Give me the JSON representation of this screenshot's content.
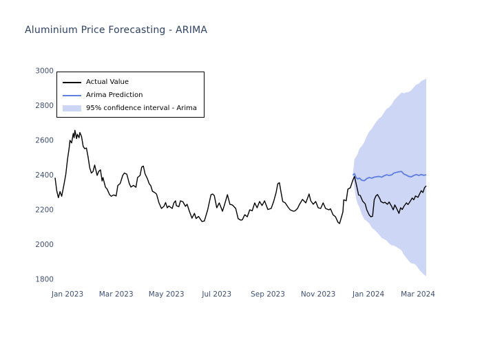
{
  "title": "Aluminium Price Forecasting - ARIMA",
  "colors": {
    "background": "#ffffff",
    "title_text": "#2e4160",
    "tick_text": "#3e4f72",
    "actual_line": "#000000",
    "prediction_line": "#6080e0",
    "confidence_band": "#cdd6f5",
    "legend_border": "#000000",
    "legend_text": "#000000"
  },
  "legend": {
    "position": "upper left",
    "items": [
      {
        "label": "Actual Value",
        "swatch": "line",
        "color": "#000000"
      },
      {
        "label": "Arima Prediction",
        "swatch": "line",
        "color": "#6080e0"
      },
      {
        "label": "95% confidence interval - Arima",
        "swatch": "patch",
        "color": "#cdd6f5"
      }
    ]
  },
  "chart_data": {
    "type": "line",
    "title": "Aluminium Price Forecasting - ARIMA",
    "xlabel": "",
    "ylabel": "",
    "grid": false,
    "frame": false,
    "legend_position": "upper left",
    "ylim": [
      1800,
      3000
    ],
    "y_ticks": [
      1800,
      2000,
      2200,
      2400,
      2600,
      2800,
      3000
    ],
    "x_ticks": [
      {
        "label": "Jan 2023",
        "date": "2023-01-01"
      },
      {
        "label": "Mar 2023",
        "date": "2023-03-01"
      },
      {
        "label": "May 2023",
        "date": "2023-05-01"
      },
      {
        "label": "Jul 2023",
        "date": "2023-07-01"
      },
      {
        "label": "Sep 2023",
        "date": "2023-09-01"
      },
      {
        "label": "Nov 2023",
        "date": "2023-11-01"
      },
      {
        "label": "Jan 2024",
        "date": "2024-01-01"
      },
      {
        "label": "Mar 2024",
        "date": "2024-03-01"
      }
    ],
    "series": [
      {
        "name": "Actual Value",
        "type": "line",
        "color": "#000000",
        "points": [
          [
            "2022-12-17",
            2385
          ],
          [
            "2022-12-19",
            2310
          ],
          [
            "2022-12-21",
            2270
          ],
          [
            "2022-12-23",
            2305
          ],
          [
            "2022-12-25",
            2278
          ],
          [
            "2022-12-28",
            2352
          ],
          [
            "2022-12-30",
            2405
          ],
          [
            "2023-01-01",
            2490
          ],
          [
            "2023-01-03",
            2555
          ],
          [
            "2023-01-04",
            2600
          ],
          [
            "2023-01-06",
            2585
          ],
          [
            "2023-01-08",
            2640
          ],
          [
            "2023-01-09",
            2615
          ],
          [
            "2023-01-10",
            2658
          ],
          [
            "2023-01-12",
            2610
          ],
          [
            "2023-01-13",
            2635
          ],
          [
            "2023-01-15",
            2615
          ],
          [
            "2023-01-16",
            2645
          ],
          [
            "2023-01-18",
            2622
          ],
          [
            "2023-01-20",
            2565
          ],
          [
            "2023-01-22",
            2552
          ],
          [
            "2023-01-24",
            2556
          ],
          [
            "2023-01-26",
            2505
          ],
          [
            "2023-01-28",
            2442
          ],
          [
            "2023-01-30",
            2412
          ],
          [
            "2023-02-01",
            2420
          ],
          [
            "2023-02-03",
            2458
          ],
          [
            "2023-02-06",
            2398
          ],
          [
            "2023-02-08",
            2422
          ],
          [
            "2023-02-10",
            2430
          ],
          [
            "2023-02-12",
            2366
          ],
          [
            "2023-02-13",
            2386
          ],
          [
            "2023-02-16",
            2331
          ],
          [
            "2023-02-18",
            2320
          ],
          [
            "2023-02-21",
            2288
          ],
          [
            "2023-02-23",
            2278
          ],
          [
            "2023-02-26",
            2286
          ],
          [
            "2023-03-01",
            2280
          ],
          [
            "2023-03-03",
            2340
          ],
          [
            "2023-03-06",
            2352
          ],
          [
            "2023-03-09",
            2398
          ],
          [
            "2023-03-11",
            2412
          ],
          [
            "2023-03-14",
            2405
          ],
          [
            "2023-03-17",
            2351
          ],
          [
            "2023-03-19",
            2331
          ],
          [
            "2023-03-22",
            2341
          ],
          [
            "2023-03-25",
            2330
          ],
          [
            "2023-03-27",
            2386
          ],
          [
            "2023-03-30",
            2398
          ],
          [
            "2023-04-01",
            2446
          ],
          [
            "2023-04-03",
            2452
          ],
          [
            "2023-04-05",
            2408
          ],
          [
            "2023-04-08",
            2378
          ],
          [
            "2023-04-10",
            2351
          ],
          [
            "2023-04-12",
            2339
          ],
          [
            "2023-04-14",
            2307
          ],
          [
            "2023-04-17",
            2299
          ],
          [
            "2023-04-19",
            2291
          ],
          [
            "2023-04-22",
            2240
          ],
          [
            "2023-04-25",
            2208
          ],
          [
            "2023-04-28",
            2220
          ],
          [
            "2023-04-30",
            2242
          ],
          [
            "2023-05-02",
            2212
          ],
          [
            "2023-05-04",
            2222
          ],
          [
            "2023-05-08",
            2208
          ],
          [
            "2023-05-10",
            2240
          ],
          [
            "2023-05-12",
            2252
          ],
          [
            "2023-05-13",
            2224
          ],
          [
            "2023-05-16",
            2218
          ],
          [
            "2023-05-18",
            2252
          ],
          [
            "2023-05-21",
            2246
          ],
          [
            "2023-05-24",
            2220
          ],
          [
            "2023-05-26",
            2232
          ],
          [
            "2023-05-29",
            2190
          ],
          [
            "2023-06-01",
            2152
          ],
          [
            "2023-06-04",
            2180
          ],
          [
            "2023-06-06",
            2150
          ],
          [
            "2023-06-09",
            2162
          ],
          [
            "2023-06-13",
            2133
          ],
          [
            "2023-06-16",
            2136
          ],
          [
            "2023-06-20",
            2200
          ],
          [
            "2023-06-24",
            2287
          ],
          [
            "2023-06-26",
            2291
          ],
          [
            "2023-06-28",
            2282
          ],
          [
            "2023-07-01",
            2212
          ],
          [
            "2023-07-04",
            2240
          ],
          [
            "2023-07-08",
            2192
          ],
          [
            "2023-07-10",
            2222
          ],
          [
            "2023-07-14",
            2287
          ],
          [
            "2023-07-17",
            2232
          ],
          [
            "2023-07-20",
            2228
          ],
          [
            "2023-07-24",
            2208
          ],
          [
            "2023-07-27",
            2149
          ],
          [
            "2023-07-30",
            2141
          ],
          [
            "2023-08-01",
            2142
          ],
          [
            "2023-08-04",
            2172
          ],
          [
            "2023-08-07",
            2160
          ],
          [
            "2023-08-10",
            2200
          ],
          [
            "2023-08-13",
            2195
          ],
          [
            "2023-08-16",
            2240
          ],
          [
            "2023-08-19",
            2212
          ],
          [
            "2023-08-22",
            2248
          ],
          [
            "2023-08-25",
            2225
          ],
          [
            "2023-08-28",
            2252
          ],
          [
            "2023-09-01",
            2202
          ],
          [
            "2023-09-05",
            2208
          ],
          [
            "2023-09-08",
            2248
          ],
          [
            "2023-09-11",
            2300
          ],
          [
            "2023-09-13",
            2350
          ],
          [
            "2023-09-15",
            2356
          ],
          [
            "2023-09-17",
            2300
          ],
          [
            "2023-09-19",
            2248
          ],
          [
            "2023-09-22",
            2240
          ],
          [
            "2023-09-26",
            2212
          ],
          [
            "2023-09-28",
            2200
          ],
          [
            "2023-10-02",
            2192
          ],
          [
            "2023-10-04",
            2194
          ],
          [
            "2023-10-07",
            2208
          ],
          [
            "2023-10-09",
            2228
          ],
          [
            "2023-10-13",
            2260
          ],
          [
            "2023-10-17",
            2240
          ],
          [
            "2023-10-21",
            2291
          ],
          [
            "2023-10-23",
            2252
          ],
          [
            "2023-10-26",
            2232
          ],
          [
            "2023-10-29",
            2248
          ],
          [
            "2023-11-01",
            2212
          ],
          [
            "2023-11-04",
            2208
          ],
          [
            "2023-11-07",
            2240
          ],
          [
            "2023-11-10",
            2208
          ],
          [
            "2023-11-14",
            2200
          ],
          [
            "2023-11-16",
            2206
          ],
          [
            "2023-11-19",
            2172
          ],
          [
            "2023-11-22",
            2160
          ],
          [
            "2023-11-25",
            2129
          ],
          [
            "2023-11-27",
            2121
          ],
          [
            "2023-12-01",
            2188
          ],
          [
            "2023-12-02",
            2258
          ],
          [
            "2023-12-05",
            2252
          ],
          [
            "2023-12-07",
            2319
          ],
          [
            "2023-12-10",
            2327
          ],
          [
            "2023-12-13",
            2371
          ],
          [
            "2023-12-15",
            2392
          ],
          [
            "2023-12-18",
            2330
          ],
          [
            "2023-12-20",
            2285
          ],
          [
            "2023-12-22",
            2283
          ],
          [
            "2023-12-25",
            2250
          ],
          [
            "2023-12-28",
            2235
          ],
          [
            "2023-12-30",
            2200
          ],
          [
            "2024-01-02",
            2170
          ],
          [
            "2024-01-04",
            2160
          ],
          [
            "2024-01-06",
            2163
          ],
          [
            "2024-01-08",
            2258
          ],
          [
            "2024-01-10",
            2280
          ],
          [
            "2024-01-12",
            2288
          ],
          [
            "2024-01-15",
            2262
          ],
          [
            "2024-01-16",
            2248
          ],
          [
            "2024-01-19",
            2240
          ],
          [
            "2024-01-21",
            2243
          ],
          [
            "2024-01-24",
            2232
          ],
          [
            "2024-01-26",
            2245
          ],
          [
            "2024-01-29",
            2220
          ],
          [
            "2024-01-31",
            2200
          ],
          [
            "2024-02-02",
            2228
          ],
          [
            "2024-02-04",
            2210
          ],
          [
            "2024-02-07",
            2180
          ],
          [
            "2024-02-09",
            2212
          ],
          [
            "2024-02-11",
            2202
          ],
          [
            "2024-02-13",
            2220
          ],
          [
            "2024-02-16",
            2240
          ],
          [
            "2024-02-18",
            2230
          ],
          [
            "2024-02-21",
            2252
          ],
          [
            "2024-02-23",
            2268
          ],
          [
            "2024-02-25",
            2258
          ],
          [
            "2024-02-27",
            2280
          ],
          [
            "2024-03-01",
            2272
          ],
          [
            "2024-03-03",
            2292
          ],
          [
            "2024-03-05",
            2310
          ],
          [
            "2024-03-07",
            2300
          ],
          [
            "2024-03-09",
            2328
          ],
          [
            "2024-03-11",
            2338
          ]
        ]
      },
      {
        "name": "Arima Prediction",
        "type": "line",
        "color": "#6080e0",
        "points": [
          [
            "2023-12-13",
            2400
          ],
          [
            "2023-12-15",
            2408
          ],
          [
            "2023-12-17",
            2385
          ],
          [
            "2023-12-19",
            2378
          ],
          [
            "2023-12-21",
            2383
          ],
          [
            "2023-12-24",
            2370
          ],
          [
            "2023-12-27",
            2368
          ],
          [
            "2023-12-30",
            2380
          ],
          [
            "2024-01-02",
            2386
          ],
          [
            "2024-01-05",
            2382
          ],
          [
            "2024-01-08",
            2388
          ],
          [
            "2024-01-11",
            2391
          ],
          [
            "2024-01-14",
            2392
          ],
          [
            "2024-01-17",
            2388
          ],
          [
            "2024-01-20",
            2396
          ],
          [
            "2024-01-23",
            2402
          ],
          [
            "2024-01-26",
            2398
          ],
          [
            "2024-01-29",
            2401
          ],
          [
            "2024-02-01",
            2412
          ],
          [
            "2024-02-04",
            2416
          ],
          [
            "2024-02-07",
            2419
          ],
          [
            "2024-02-10",
            2421
          ],
          [
            "2024-02-13",
            2406
          ],
          [
            "2024-02-16",
            2400
          ],
          [
            "2024-02-19",
            2392
          ],
          [
            "2024-02-22",
            2390
          ],
          [
            "2024-02-25",
            2398
          ],
          [
            "2024-02-28",
            2403
          ],
          [
            "2024-03-02",
            2398
          ],
          [
            "2024-03-05",
            2403
          ],
          [
            "2024-03-08",
            2399
          ],
          [
            "2024-03-11",
            2402
          ]
        ]
      },
      {
        "name": "95% confidence interval - Arima",
        "type": "band",
        "color": "#cdd6f5",
        "points": [
          [
            "2023-12-13",
            2400,
            2400
          ],
          [
            "2023-12-15",
            2322,
            2492
          ],
          [
            "2023-12-17",
            2265,
            2505
          ],
          [
            "2023-12-19",
            2232,
            2524
          ],
          [
            "2023-12-21",
            2215,
            2552
          ],
          [
            "2023-12-24",
            2173,
            2567
          ],
          [
            "2023-12-27",
            2146,
            2590
          ],
          [
            "2023-12-30",
            2135,
            2625
          ],
          [
            "2024-01-02",
            2121,
            2651
          ],
          [
            "2024-01-05",
            2098,
            2666
          ],
          [
            "2024-01-08",
            2086,
            2690
          ],
          [
            "2024-01-11",
            2072,
            2710
          ],
          [
            "2024-01-14",
            2057,
            2727
          ],
          [
            "2024-01-17",
            2038,
            2738
          ],
          [
            "2024-01-20",
            2031,
            2761
          ],
          [
            "2024-01-23",
            2023,
            2781
          ],
          [
            "2024-01-26",
            2006,
            2790
          ],
          [
            "2024-01-29",
            1996,
            2806
          ],
          [
            "2024-02-01",
            1994,
            2830
          ],
          [
            "2024-02-04",
            1986,
            2846
          ],
          [
            "2024-02-07",
            1977,
            2861
          ],
          [
            "2024-02-10",
            1967,
            2875
          ],
          [
            "2024-02-13",
            1941,
            2871
          ],
          [
            "2024-02-16",
            1924,
            2876
          ],
          [
            "2024-02-19",
            1905,
            2879
          ],
          [
            "2024-02-22",
            1892,
            2888
          ],
          [
            "2024-02-25",
            1890,
            2906
          ],
          [
            "2024-02-28",
            1880,
            2921
          ],
          [
            "2024-03-02",
            1858,
            2926
          ],
          [
            "2024-03-05",
            1842,
            2941
          ],
          [
            "2024-03-08",
            1828,
            2948
          ],
          [
            "2024-03-11",
            1818,
            2956
          ]
        ]
      }
    ]
  }
}
